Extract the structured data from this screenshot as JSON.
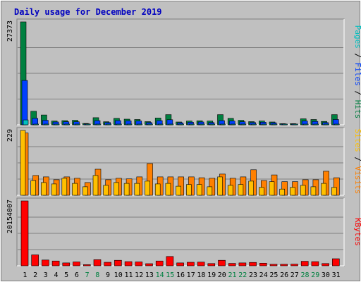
{
  "title": "Daily usage for December 2019",
  "colors": {
    "background": "#c0c0c0",
    "plot_bg": "#c0c0c0",
    "title": "#0000c0",
    "hits": "#008040",
    "files": "#0040ff",
    "pages": "#00c0c0",
    "visits": "#ff8000",
    "sites": "#ffc000",
    "kbytes": "#ff0000",
    "weekend": "#008040"
  },
  "chart_data": [
    {
      "type": "bar",
      "panel": "hits-files-pages",
      "categories": [
        "1",
        "2",
        "3",
        "4",
        "5",
        "6",
        "7",
        "8",
        "9",
        "10",
        "11",
        "12",
        "13",
        "14",
        "15",
        "16",
        "17",
        "18",
        "19",
        "20",
        "21",
        "22",
        "23",
        "24",
        "25",
        "26",
        "27",
        "28",
        "29",
        "30",
        "31"
      ],
      "weekend_days": [
        "7",
        "8",
        "14",
        "15",
        "21",
        "22",
        "28",
        "29"
      ],
      "ymax_label": "27373",
      "ylim": [
        0,
        27373
      ],
      "legend": [
        "Pages",
        "Files",
        "Hits"
      ],
      "grid": true,
      "series": [
        {
          "name": "Hits",
          "values": [
            27373,
            3600,
            2600,
            1000,
            1100,
            1200,
            350,
            1900,
            800,
            1700,
            1500,
            1400,
            850,
            1800,
            2700,
            750,
            1000,
            1050,
            1000,
            2700,
            1700,
            1200,
            850,
            1000,
            750,
            300,
            300,
            1600,
            1400,
            900,
            2700
          ]
        },
        {
          "name": "Files",
          "values": [
            11800,
            1700,
            1200,
            750,
            800,
            800,
            250,
            1100,
            600,
            1100,
            1050,
            1000,
            600,
            1100,
            1350,
            550,
            700,
            750,
            600,
            1100,
            1000,
            800,
            600,
            700,
            550,
            200,
            200,
            1000,
            900,
            600,
            1400
          ]
        },
        {
          "name": "Pages",
          "values": [
            1300,
            150,
            120,
            80,
            90,
            80,
            40,
            100,
            60,
            90,
            80,
            80,
            60,
            90,
            110,
            50,
            60,
            60,
            50,
            90,
            80,
            70,
            50,
            60,
            50,
            30,
            30,
            80,
            70,
            50,
            100
          ]
        }
      ]
    },
    {
      "type": "bar",
      "panel": "visits-sites",
      "categories": [
        "1",
        "2",
        "3",
        "4",
        "5",
        "6",
        "7",
        "8",
        "9",
        "10",
        "11",
        "12",
        "13",
        "14",
        "15",
        "16",
        "17",
        "18",
        "19",
        "20",
        "21",
        "22",
        "23",
        "24",
        "25",
        "26",
        "27",
        "28",
        "29",
        "30",
        "31"
      ],
      "ymax_label": "229",
      "ylim": [
        0,
        229
      ],
      "legend": [
        "Sites",
        "Visits"
      ],
      "grid": true,
      "series": [
        {
          "name": "Visits",
          "values": [
            220,
            70,
            65,
            55,
            65,
            60,
            45,
            92,
            55,
            60,
            58,
            65,
            112,
            65,
            65,
            65,
            65,
            62,
            60,
            75,
            60,
            65,
            90,
            52,
            72,
            48,
            48,
            55,
            55,
            85,
            62
          ]
        },
        {
          "name": "Sites",
          "values": [
            229,
            52,
            45,
            40,
            60,
            42,
            30,
            70,
            35,
            45,
            42,
            42,
            50,
            40,
            42,
            32,
            38,
            38,
            30,
            65,
            35,
            38,
            50,
            28,
            48,
            22,
            28,
            35,
            30,
            42,
            28
          ]
        }
      ]
    },
    {
      "type": "bar",
      "panel": "kbytes",
      "categories": [
        "1",
        "2",
        "3",
        "4",
        "5",
        "6",
        "7",
        "8",
        "9",
        "10",
        "11",
        "12",
        "13",
        "14",
        "15",
        "16",
        "17",
        "18",
        "19",
        "20",
        "21",
        "22",
        "23",
        "24",
        "25",
        "26",
        "27",
        "28",
        "29",
        "30",
        "31"
      ],
      "ymax_label": "20154007",
      "ylim": [
        0,
        20154007
      ],
      "legend": [
        "KBytes"
      ],
      "grid": true,
      "series": [
        {
          "name": "KBytes",
          "values": [
            20154007,
            3400000,
            1800000,
            1500000,
            900000,
            1200000,
            350000,
            1900000,
            1100000,
            1700000,
            1300000,
            1200000,
            650000,
            1500000,
            2900000,
            900000,
            1100000,
            1150000,
            700000,
            1700000,
            750000,
            900000,
            1050000,
            800000,
            450000,
            450000,
            500000,
            1400000,
            1300000,
            700000,
            2200000
          ]
        }
      ]
    }
  ]
}
